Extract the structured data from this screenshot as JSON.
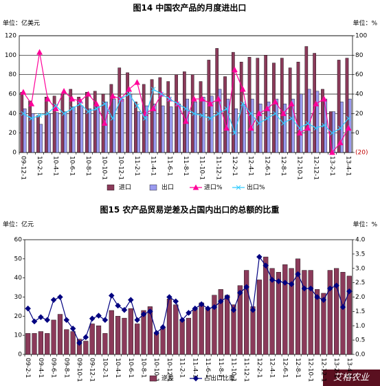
{
  "chart_data": [
    {
      "type": "bar",
      "title": "图14 中国农产品的月度进出口",
      "y_unit": "单位：亿美元",
      "y2_unit": "单位：%",
      "categories": [
        "09-12-1",
        null,
        "10-2-1",
        null,
        "10-4-1",
        null,
        "10-6-1",
        null,
        "10-8-1",
        null,
        "10-10-1",
        null,
        "10-12-1",
        null,
        "11-2-1",
        null,
        "11-4-1",
        null,
        "11-6-1",
        null,
        "11-8-1",
        null,
        "11-10-1",
        null,
        "11-12-1",
        null,
        "12-2-1",
        null,
        "12-4-1",
        null,
        "12-6-1",
        null,
        "12-8-1",
        null,
        "12-10-1",
        null,
        "12-12-1",
        null,
        "13-2-1",
        null,
        "13-4-1"
      ],
      "series": [
        {
          "name": "进口",
          "color": "#8b3a5a",
          "values": [
            62,
            53,
            38,
            57,
            58,
            60,
            65,
            57,
            62,
            63,
            60,
            70,
            87,
            82,
            52,
            70,
            75,
            77,
            73,
            80,
            83,
            80,
            73,
            95,
            107,
            78,
            103,
            93,
            98,
            97,
            100,
            92,
            97,
            87,
            93,
            109,
            102,
            65,
            42,
            95,
            97
          ]
        },
        {
          "name": "出口",
          "color": "#9a9af0",
          "values": [
            45,
            40,
            29,
            40,
            41,
            42,
            47,
            48,
            45,
            47,
            52,
            55,
            55,
            60,
            42,
            48,
            50,
            48,
            47,
            50,
            55,
            52,
            57,
            58,
            65,
            55,
            45,
            50,
            55,
            50,
            52,
            55,
            50,
            55,
            60,
            65,
            63,
            55,
            42,
            52,
            55
          ]
        },
        {
          "name": "进口%",
          "color": "#ff0099",
          "type": "line",
          "marker": "triangle",
          "axis": "y2",
          "values": [
            42,
            30,
            83,
            35,
            25,
            43,
            35,
            33,
            40,
            30,
            10,
            38,
            35,
            45,
            52,
            20,
            25,
            40,
            35,
            30,
            12,
            35,
            35,
            30,
            35,
            5,
            65,
            45,
            5,
            20,
            25,
            32,
            20,
            30,
            0,
            5,
            30,
            35,
            -20,
            -10,
            5
          ]
        },
        {
          "name": "出口%",
          "color": "#33ccff",
          "type": "line",
          "marker": "x",
          "axis": "y2",
          "values": [
            20,
            15,
            18,
            20,
            28,
            20,
            25,
            30,
            22,
            25,
            30,
            15,
            35,
            40,
            28,
            15,
            45,
            40,
            35,
            30,
            25,
            20,
            18,
            15,
            20,
            25,
            0,
            30,
            20,
            10,
            15,
            20,
            10,
            15,
            5,
            10,
            5,
            8,
            0,
            5,
            15
          ]
        }
      ],
      "ylim": [
        0,
        120
      ],
      "yticks": [
        0,
        20,
        40,
        60,
        80,
        100,
        120
      ],
      "y2lim": [
        -20,
        100
      ],
      "y2ticks": [
        {
          "value": -20,
          "label": "(20)"
        },
        0,
        20,
        40,
        60,
        80,
        100
      ],
      "grid": true
    },
    {
      "type": "bar",
      "title": "图15 农产品贸易逆差及占国内出口的总额的比重",
      "y_unit": "单位：亿元",
      "y2_unit": "单位：%",
      "categories": [
        "09-2-1",
        null,
        "09-4-1",
        null,
        "09-6-1",
        null,
        "09-8-1",
        null,
        "09-10-1",
        null,
        "09-12-1",
        null,
        "10-2-1",
        null,
        "10-4-1",
        null,
        "10-6-1",
        null,
        "10-8-1",
        null,
        "10-10-1",
        null,
        "10-12-1",
        null,
        "11-2-1",
        null,
        "11-4-1",
        null,
        "11-6-1",
        null,
        "11-8-1",
        null,
        "11-10-1",
        null,
        "11-12-1",
        null,
        "12-2-1",
        null,
        "12-4-1",
        null,
        "12-6-1",
        null,
        "12-8-1",
        null,
        "12-10-1",
        null,
        "12-12-1",
        null,
        "13-2-1",
        null,
        "13-4-1"
      ],
      "series": [
        {
          "name": "逆差",
          "color": "#8b3a5a",
          "values": [
            11,
            11,
            12,
            11,
            18,
            21,
            13,
            12,
            8,
            7,
            16,
            15,
            11,
            23,
            20,
            19,
            24,
            16,
            23,
            25,
            11,
            14,
            29,
            26,
            18,
            19,
            24,
            27,
            24,
            31,
            34,
            31,
            26,
            36,
            44,
            25,
            39,
            51,
            45,
            43,
            47,
            45,
            50,
            44,
            44,
            34,
            32,
            44,
            45,
            43,
            41
          ]
        },
        {
          "name": "占出口比重",
          "color": "#000080",
          "type": "line",
          "marker": "diamond",
          "axis": "y2",
          "values": [
            1.6,
            1.15,
            1.3,
            1.2,
            1.9,
            2.0,
            1.2,
            0.9,
            0.4,
            0.6,
            1.25,
            1.35,
            1.2,
            2.05,
            1.7,
            1.55,
            1.9,
            1.2,
            1.4,
            1.5,
            0.75,
            0.95,
            2.0,
            1.85,
            1.2,
            1.45,
            1.6,
            1.75,
            1.6,
            1.65,
            1.85,
            2.0,
            1.55,
            2.15,
            2.35,
            1.55,
            3.4,
            3.1,
            2.6,
            2.55,
            2.5,
            2.45,
            2.8,
            2.3,
            2.3,
            2.0,
            1.9,
            2.3,
            2.4,
            1.65,
            2.2
          ]
        }
      ],
      "ylim": [
        0,
        60
      ],
      "yticks": [
        0,
        10,
        20,
        30,
        40,
        50,
        60
      ],
      "y2lim": [
        0,
        4
      ],
      "y2ticks": [
        {
          "value": 0,
          "label": "0.0"
        },
        0.5,
        {
          "value": 1,
          "label": "1.0"
        },
        1.5,
        {
          "value": 2,
          "label": "2.0"
        },
        2.5,
        {
          "value": 3,
          "label": "3.0"
        },
        3.5,
        {
          "value": 4,
          "label": "4.0"
        }
      ],
      "grid": false
    }
  ],
  "watermark": "艾格农业"
}
